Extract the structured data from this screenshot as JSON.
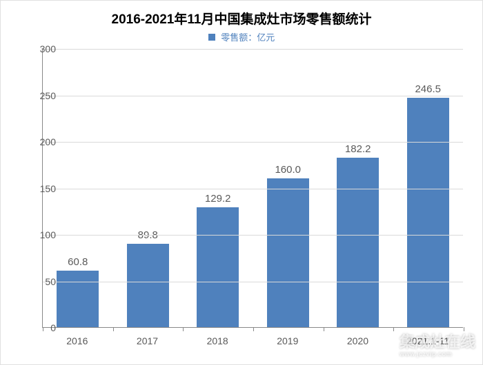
{
  "chart": {
    "type": "bar",
    "title": "2016-2021年11月中国集成灶市场零售额统计",
    "title_fontsize": 19,
    "title_color": "#000000",
    "legend": {
      "label": "零售额：亿元",
      "color": "#4f81bd",
      "fontsize": 13,
      "text_color": "#4f81bd"
    },
    "categories": [
      "2016",
      "2017",
      "2018",
      "2019",
      "2020",
      "2021.1-11"
    ],
    "values": [
      60.8,
      89.8,
      129.2,
      160.0,
      182.2,
      246.5
    ],
    "value_labels": [
      "60.8",
      "89.8",
      "129.2",
      "160.0",
      "182.2",
      "246.5"
    ],
    "bar_color": "#4f81bd",
    "bar_width": 0.6,
    "ylim": [
      0,
      300
    ],
    "ytick_step": 50,
    "yticks": [
      0,
      50,
      100,
      150,
      200,
      250,
      300
    ],
    "grid_color": "#d9d9d9",
    "axis_color": "#888888",
    "background_color": "#ffffff",
    "label_fontsize": 14,
    "value_fontsize": 15,
    "tick_fontsize": 14,
    "tick_color": "#595959"
  },
  "watermark": {
    "main": "集成灶在线",
    "sub": "www.jczvip.com"
  }
}
